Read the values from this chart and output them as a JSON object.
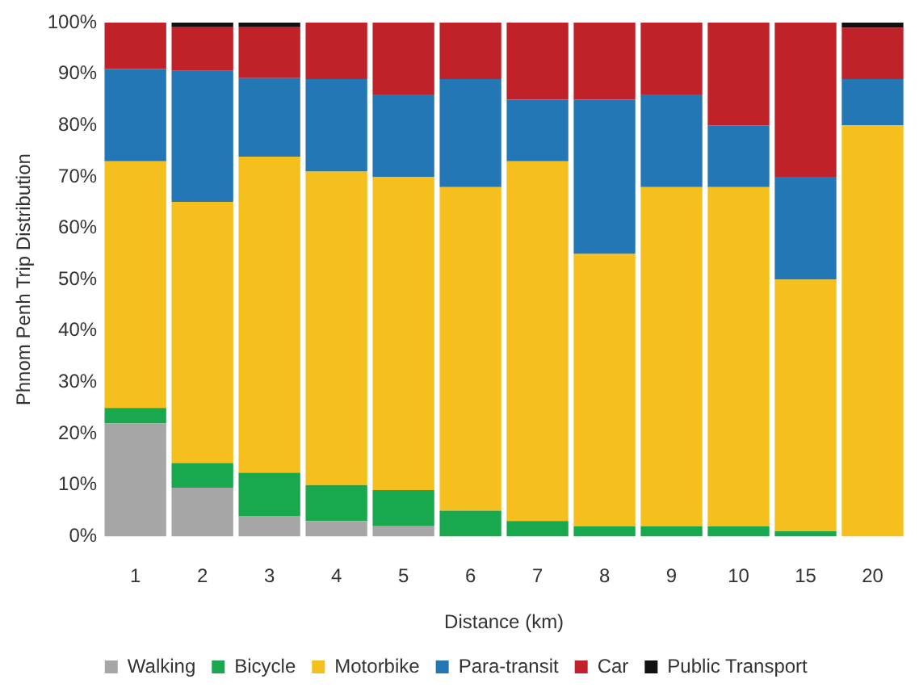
{
  "chart_data": {
    "type": "bar",
    "stacked": true,
    "xlabel": "Distance (km)",
    "ylabel": "Phnom Penh Trip Distribution",
    "categories": [
      "1",
      "2",
      "3",
      "4",
      "5",
      "6",
      "7",
      "8",
      "9",
      "10",
      "15",
      "20"
    ],
    "series": [
      {
        "name": "Walking",
        "color": "#a6a6a6",
        "values": [
          22,
          9.5,
          4,
          3,
          2,
          0,
          0,
          0,
          0,
          0,
          0,
          0
        ]
      },
      {
        "name": "Bicycle",
        "color": "#1aa84f",
        "values": [
          3,
          4.8,
          8.4,
          7,
          7,
          5,
          3,
          2,
          2,
          2,
          1,
          0
        ]
      },
      {
        "name": "Motorbike",
        "color": "#f5c01e",
        "values": [
          48,
          50.8,
          61.5,
          61,
          61,
          63,
          70,
          53,
          66,
          66,
          49,
          80
        ]
      },
      {
        "name": "Para-transit",
        "color": "#2377b5",
        "values": [
          18,
          25.5,
          15.3,
          18,
          16,
          21,
          12,
          30,
          18,
          12,
          20,
          9
        ]
      },
      {
        "name": "Car",
        "color": "#bf2229",
        "values": [
          9,
          8.6,
          10,
          11,
          14,
          11,
          15,
          15,
          14,
          20,
          30,
          10
        ]
      },
      {
        "name": "Public Transport",
        "color": "#111111",
        "values": [
          0,
          0.8,
          0.8,
          0,
          0,
          0,
          0,
          0,
          0,
          0,
          0,
          1
        ]
      }
    ],
    "ylim": [
      0,
      100
    ],
    "yticks": [
      {
        "value": 0,
        "label": "0%"
      },
      {
        "value": 10,
        "label": "10%"
      },
      {
        "value": 20,
        "label": "20%"
      },
      {
        "value": 30,
        "label": "30%"
      },
      {
        "value": 40,
        "label": "40%"
      },
      {
        "value": 50,
        "label": "50%"
      },
      {
        "value": 60,
        "label": "60%"
      },
      {
        "value": 70,
        "label": "70%"
      },
      {
        "value": 80,
        "label": "80%"
      },
      {
        "value": 90,
        "label": "90%"
      },
      {
        "value": 100,
        "label": "100%"
      }
    ],
    "grid": false,
    "legend": "bottom"
  }
}
